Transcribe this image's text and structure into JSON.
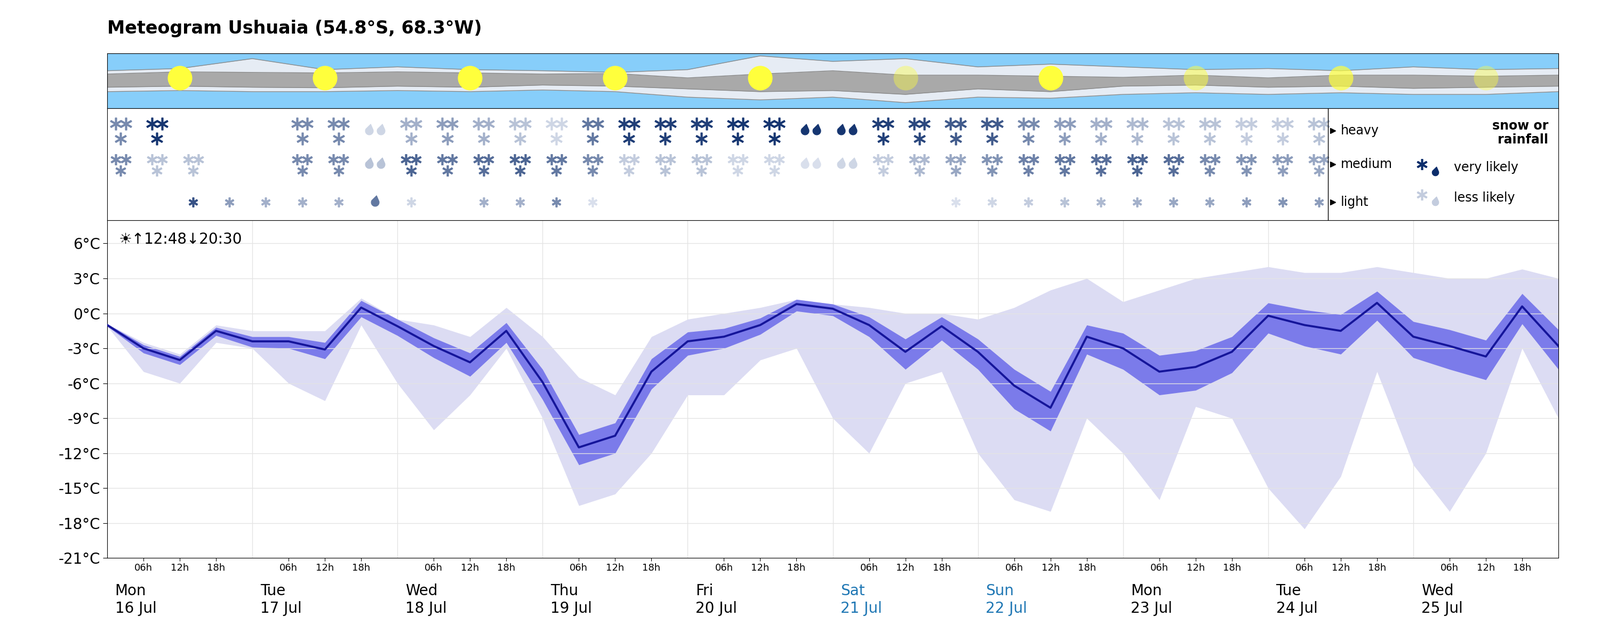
{
  "chart_data": {
    "type": "meteogram",
    "title": "Meteogram Ushuaia (54.8°S, 68.3°W)",
    "sun_text": "☀↑12:48↓20:30",
    "x": [
      0,
      6,
      12,
      18,
      24,
      30,
      36,
      42,
      48,
      54,
      60,
      66,
      72,
      78,
      84,
      90,
      96,
      102,
      108,
      114,
      120,
      126,
      132,
      138,
      144,
      150,
      156,
      162,
      168,
      174,
      180,
      186,
      192,
      198,
      204,
      210,
      216,
      222,
      228,
      234,
      240
    ],
    "xlim": [
      0,
      240
    ],
    "xticks": [
      {
        "value": 6,
        "label": "06h"
      },
      {
        "value": 12,
        "label": "12h"
      },
      {
        "value": 18,
        "label": "18h"
      },
      {
        "value": 30,
        "label": "06h"
      },
      {
        "value": 36,
        "label": "12h"
      },
      {
        "value": 42,
        "label": "18h"
      },
      {
        "value": 54,
        "label": "06h"
      },
      {
        "value": 60,
        "label": "12h"
      },
      {
        "value": 66,
        "label": "18h"
      },
      {
        "value": 78,
        "label": "06h"
      },
      {
        "value": 84,
        "label": "12h"
      },
      {
        "value": 90,
        "label": "18h"
      },
      {
        "value": 102,
        "label": "06h"
      },
      {
        "value": 108,
        "label": "12h"
      },
      {
        "value": 114,
        "label": "18h"
      },
      {
        "value": 126,
        "label": "06h"
      },
      {
        "value": 132,
        "label": "12h"
      },
      {
        "value": 138,
        "label": "18h"
      },
      {
        "value": 150,
        "label": "06h"
      },
      {
        "value": 156,
        "label": "12h"
      },
      {
        "value": 162,
        "label": "18h"
      },
      {
        "value": 174,
        "label": "06h"
      },
      {
        "value": 180,
        "label": "12h"
      },
      {
        "value": 186,
        "label": "18h"
      },
      {
        "value": 198,
        "label": "06h"
      },
      {
        "value": 204,
        "label": "12h"
      },
      {
        "value": 210,
        "label": "18h"
      },
      {
        "value": 222,
        "label": "06h"
      },
      {
        "value": 228,
        "label": "12h"
      },
      {
        "value": 234,
        "label": "18h"
      }
    ],
    "day_labels": [
      {
        "value": 0,
        "label": "Mon\n16 Jul",
        "color": "#000000"
      },
      {
        "value": 24,
        "label": "Tue\n17 Jul",
        "color": "#000000"
      },
      {
        "value": 48,
        "label": "Wed\n18 Jul",
        "color": "#000000"
      },
      {
        "value": 72,
        "label": "Thu\n19 Jul",
        "color": "#000000"
      },
      {
        "value": 96,
        "label": "Fri\n20 Jul",
        "color": "#000000"
      },
      {
        "value": 120,
        "label": "Sat\n21 Jul",
        "color": "#1f77b4"
      },
      {
        "value": 144,
        "label": "Sun\n22 Jul",
        "color": "#1f77b4"
      },
      {
        "value": 168,
        "label": "Mon\n23 Jul",
        "color": "#000000"
      },
      {
        "value": 192,
        "label": "Tue\n24 Jul",
        "color": "#000000"
      },
      {
        "value": 216,
        "label": "Wed\n25 Jul",
        "color": "#000000"
      }
    ],
    "ylim": [
      -21,
      8
    ],
    "yticks": [
      {
        "value": -21,
        "label": "-21°C"
      },
      {
        "value": -18,
        "label": "-18°C"
      },
      {
        "value": -15,
        "label": "-15°C"
      },
      {
        "value": -12,
        "label": "-12°C"
      },
      {
        "value": -9,
        "label": "-9°C"
      },
      {
        "value": -6,
        "label": "-6°C"
      },
      {
        "value": -3,
        "label": "-3°C"
      },
      {
        "value": 0,
        "label": "0°C"
      },
      {
        "value": 3,
        "label": "3°C"
      },
      {
        "value": 6,
        "label": "6°C"
      }
    ],
    "grid": true,
    "bands": [
      {
        "color": "#dcdcf3",
        "lower": [
          -1.1,
          -5,
          -6,
          -2.5,
          -3,
          -6,
          -7.5,
          -1,
          -6,
          -10,
          -7,
          -3,
          -9,
          -16.5,
          -15.5,
          -12,
          -7,
          -7,
          -4,
          -3,
          -9,
          -12,
          -6,
          -5,
          -12,
          -16,
          -17,
          -9,
          -12,
          -16,
          -8,
          -9,
          -15,
          -18.5,
          -14,
          -5,
          -13,
          -17,
          -12,
          -3,
          -9
        ],
        "upper": [
          -0.9,
          -2.5,
          -3.5,
          -1,
          -1.5,
          -1.5,
          -1.5,
          1.3,
          -0.5,
          -1,
          -2,
          0.5,
          -2,
          -5.5,
          -7,
          -2,
          -0.5,
          0,
          0.5,
          1.2,
          0.8,
          0.5,
          0,
          0,
          -0.5,
          0.5,
          2,
          3,
          1,
          2,
          3,
          3.5,
          4,
          3.5,
          3.5,
          4,
          3.5,
          3,
          3,
          3.8,
          3
        ]
      },
      {
        "color": "#7b7bea",
        "lower": [
          -1.1,
          -3.4,
          -4.4,
          -1.9,
          -2.9,
          -3.0,
          -3.9,
          -0.3,
          -1.9,
          -3.8,
          -5.4,
          -2.5,
          -7.4,
          -13.0,
          -12.0,
          -6.5,
          -3.6,
          -3.0,
          -1.8,
          0.2,
          -0.2,
          -2.0,
          -4.8,
          -2.3,
          -4.8,
          -8.2,
          -10.1,
          -3.5,
          -4.8,
          -7.0,
          -6.6,
          -5.1,
          -1.7,
          -2.8,
          -3.5,
          -0.6,
          -3.8,
          -4.8,
          -5.7,
          -0.9,
          -4.8
        ],
        "upper": [
          -0.9,
          -2.7,
          -3.7,
          -1.2,
          -2.0,
          -2.0,
          -2.5,
          1.1,
          -0.5,
          -2.1,
          -3.4,
          -0.8,
          -4.8,
          -10.4,
          -9.4,
          -3.9,
          -1.6,
          -1.3,
          -0.4,
          1.2,
          0.8,
          -0.3,
          -2.2,
          -0.3,
          -2.2,
          -4.8,
          -6.7,
          -1.0,
          -1.7,
          -3.6,
          -3.2,
          -2.0,
          0.9,
          0.3,
          -0.1,
          1.9,
          -0.7,
          -1.4,
          -2.3,
          1.7,
          -1.4
        ]
      }
    ],
    "median": {
      "color": "#15159a",
      "values": [
        -1.0,
        -3.0,
        -4.0,
        -1.5,
        -2.4,
        -2.4,
        -3.1,
        0.5,
        -1.1,
        -2.8,
        -4.2,
        -1.5,
        -5.9,
        -11.5,
        -10.5,
        -5.0,
        -2.4,
        -2.0,
        -1.0,
        0.8,
        0.4,
        -1.0,
        -3.3,
        -1.1,
        -3.3,
        -6.2,
        -8.1,
        -2.0,
        -3.0,
        -5.0,
        -4.6,
        -3.3,
        -0.2,
        -1.0,
        -1.5,
        0.9,
        -2.0,
        -2.8,
        -3.7,
        0.6,
        -2.8
      ]
    },
    "cloud": {
      "background": "#87cefa",
      "x": [
        0,
        12,
        24,
        36,
        48,
        60,
        72,
        84,
        96,
        108,
        120,
        132,
        144,
        156,
        168,
        180,
        192,
        204,
        216,
        228,
        240
      ],
      "layers": [
        {
          "color": "#e6ecf4",
          "lower": [
            0.3,
            0.32,
            0.3,
            0.3,
            0.32,
            0.3,
            0.33,
            0.3,
            0.2,
            0.15,
            0.2,
            0.1,
            0.2,
            0.18,
            0.25,
            0.28,
            0.25,
            0.28,
            0.25,
            0.25,
            0.3
          ],
          "upper": [
            0.68,
            0.72,
            0.9,
            0.7,
            0.75,
            0.7,
            0.68,
            0.65,
            0.7,
            0.95,
            0.85,
            0.9,
            0.75,
            0.8,
            0.75,
            0.7,
            0.72,
            0.68,
            0.75,
            0.7,
            0.72
          ]
        },
        {
          "color": "#a9a9a9",
          "lower": [
            0.38,
            0.4,
            0.38,
            0.37,
            0.4,
            0.38,
            0.42,
            0.4,
            0.35,
            0.3,
            0.32,
            0.25,
            0.35,
            0.3,
            0.4,
            0.42,
            0.38,
            0.4,
            0.36,
            0.38,
            0.4
          ],
          "upper": [
            0.62,
            0.66,
            0.65,
            0.64,
            0.66,
            0.64,
            0.62,
            0.63,
            0.55,
            0.62,
            0.68,
            0.6,
            0.6,
            0.58,
            0.56,
            0.6,
            0.55,
            0.6,
            0.6,
            0.58,
            0.6
          ]
        }
      ],
      "sun": {
        "color": "#ffff3c",
        "x": [
          12,
          36,
          60,
          84,
          108,
          132,
          156,
          180,
          204,
          228
        ],
        "sunshine": [
          1,
          1,
          1,
          1,
          1,
          0.4,
          1,
          0.5,
          0.7,
          0.4
        ]
      }
    },
    "precipitation": {
      "colors": [
        "#e3e8f2",
        "#0c2d6b"
      ],
      "rows": [
        {
          "name": "heavy",
          "probability": [
            0.5,
            0.95,
            null,
            null,
            null,
            0.5,
            0.5,
            0.1,
            0.3,
            0.4,
            0.3,
            0.2,
            0.1,
            0.6,
            0.9,
            0.9,
            0.9,
            0.95,
            0.95,
            0.95,
            0.95,
            0.9,
            0.85,
            0.75,
            0.75,
            0.5,
            0.4,
            0.3,
            0.25,
            0.2,
            0.2,
            0.15,
            0.15,
            0.2
          ],
          "rain": [
            7,
            19,
            20
          ]
        },
        {
          "name": "medium",
          "probability": [
            0.5,
            0.2,
            0.2,
            null,
            null,
            0.5,
            0.5,
            0.2,
            0.7,
            0.6,
            0.65,
            0.7,
            0.6,
            0.5,
            0.15,
            0.2,
            0.2,
            0.1,
            0.1,
            0.05,
            0.1,
            0.15,
            0.25,
            0.35,
            0.45,
            0.55,
            0.6,
            0.65,
            0.7,
            0.65,
            0.5,
            0.45,
            0.4,
            0.35
          ],
          "rain": [
            7,
            19,
            20
          ]
        },
        {
          "name": "light",
          "probability": [
            null,
            null,
            0.8,
            0.4,
            0.3,
            0.3,
            0.3,
            0.6,
            0.1,
            null,
            0.3,
            0.3,
            0.5,
            0.05,
            null,
            null,
            null,
            null,
            null,
            null,
            null,
            null,
            null,
            0.05,
            0.1,
            0.15,
            0.2,
            0.25,
            0.3,
            0.35,
            0.35,
            0.4,
            0.45,
            0.4
          ],
          "rain": [
            7
          ]
        }
      ],
      "legend_title": "snow or\nrainfall",
      "legend_labels": [
        "very likely",
        "less likely"
      ]
    }
  }
}
